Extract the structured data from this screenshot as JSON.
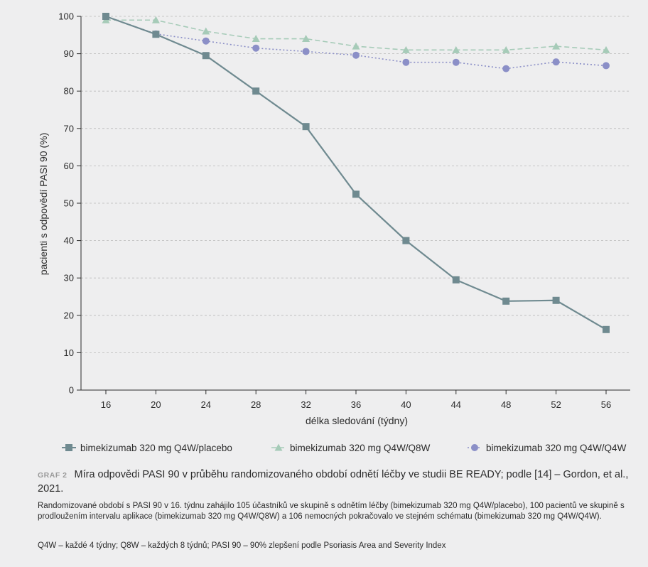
{
  "chart_data": {
    "type": "line",
    "xlabel": "délka sledování (týdny)",
    "ylabel": "pacienti s odpovědí PASI 90 (%)",
    "x": [
      16,
      20,
      24,
      28,
      32,
      36,
      40,
      44,
      48,
      52,
      56
    ],
    "x_ticks": [
      "16",
      "20",
      "24",
      "28",
      "32",
      "36",
      "40",
      "44",
      "48",
      "52",
      "56"
    ],
    "y_ticks": [
      "0",
      "10",
      "20",
      "30",
      "40",
      "50",
      "60",
      "70",
      "80",
      "90",
      "100"
    ],
    "ylim": [
      0,
      100
    ],
    "grid": "horizontal dashed",
    "legend_position": "bottom",
    "series": [
      {
        "name": "bimekizumab 320 mg Q4W/placebo",
        "marker": "square",
        "line": "solid",
        "color": "#6f8a90",
        "values": [
          100,
          95.2,
          89.5,
          80.0,
          70.5,
          52.4,
          40.0,
          29.5,
          23.8,
          24.0,
          16.2
        ]
      },
      {
        "name": "bimekizumab 320 mg Q4W/Q8W",
        "marker": "triangle",
        "line": "dashed",
        "color": "#a6cbb8",
        "values": [
          99.0,
          99.0,
          96.0,
          94.0,
          94.0,
          92.0,
          91.0,
          91.0,
          91.0,
          92.0,
          91.0
        ]
      },
      {
        "name": "bimekizumab 320 mg Q4W/Q4W",
        "marker": "circle",
        "line": "dotted",
        "color": "#8b8fc7",
        "values": [
          100,
          95.3,
          93.4,
          91.5,
          90.6,
          89.6,
          87.7,
          87.7,
          86.0,
          87.8,
          86.8
        ]
      }
    ]
  },
  "caption": {
    "label": "GRAF 2",
    "title": "Míra odpovědi PASI 90 v průběhu randomizovaného období odnětí léčby ve studii BE READY; podle [14] – Gordon, et al., 2021.",
    "note": "Randomizované období s PASI 90 v 16. týdnu zahájilo 105 účastníků ve skupině s odnětím léčby (bimekizumab 320 mg Q4W/placebo), 100 pacientů ve skupině s prodloužením intervalu aplikace (bimekizumab 320 mg Q4W/Q8W) a 106 nemocných pokračovalo ve stejném schématu (bimekizumab 320 mg Q4W/Q4W).",
    "abbreviations": "Q4W – každé 4 týdny; Q8W – každých 8 týdnů; PASI 90 – 90% zlepšení podle Psoriasis Area and Severity Index"
  }
}
